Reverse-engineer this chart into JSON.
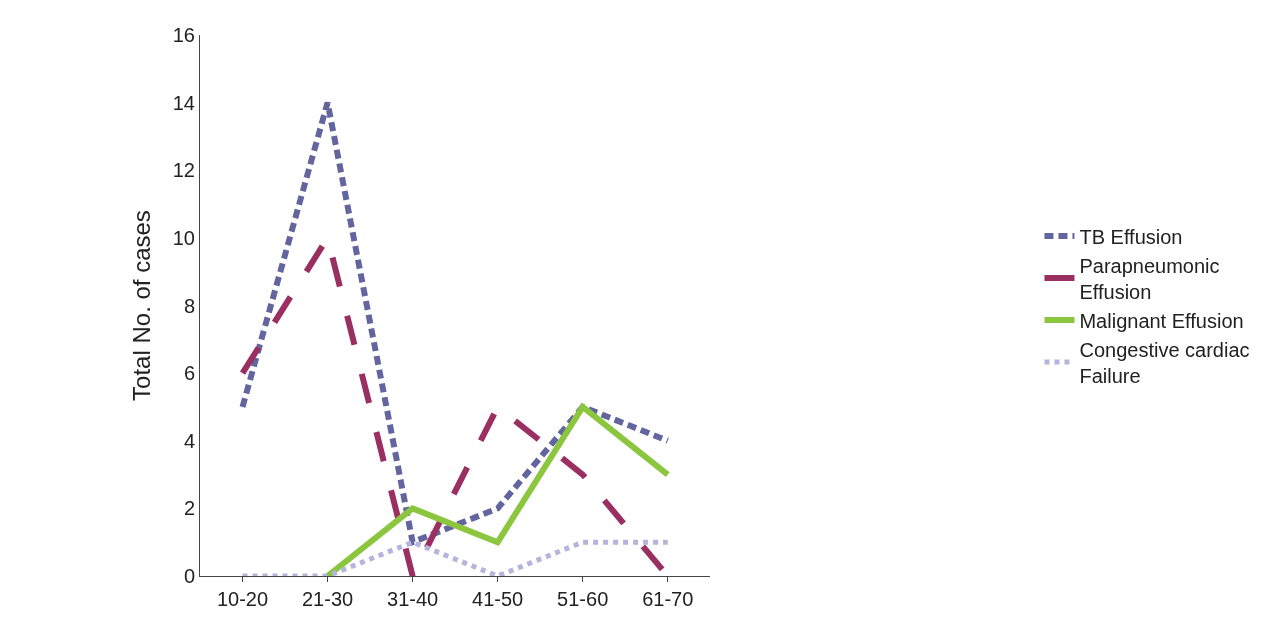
{
  "chart_data": {
    "type": "line",
    "ylabel": "Total No. of cases",
    "categories": [
      "10-20",
      "21-30",
      "31-40",
      "41-50",
      "51-60",
      "61-70"
    ],
    "series": [
      {
        "name": "TB Effusion",
        "color": "#62659e",
        "line_style": "dashed",
        "values": [
          5,
          14,
          1,
          2,
          5,
          4
        ]
      },
      {
        "name": "Parapneumonic Effusion",
        "color": "#9a2f62",
        "line_style": "longdash",
        "values": [
          6,
          10,
          0,
          5,
          3,
          0
        ]
      },
      {
        "name": "Malignant Effusion",
        "color": "#8cc63f",
        "line_style": "solid",
        "values": [
          null,
          0,
          2,
          1,
          5,
          3
        ]
      },
      {
        "name": "Congestive cardiac Failure",
        "color": "#b4b4dc",
        "line_style": "dotted",
        "values": [
          0,
          0,
          1,
          0,
          1,
          1
        ]
      }
    ],
    "ylim": [
      0,
      16
    ],
    "yticks": [
      0,
      2,
      4,
      6,
      8,
      10,
      12,
      14,
      16
    ],
    "legend": "right",
    "marker": "none"
  }
}
